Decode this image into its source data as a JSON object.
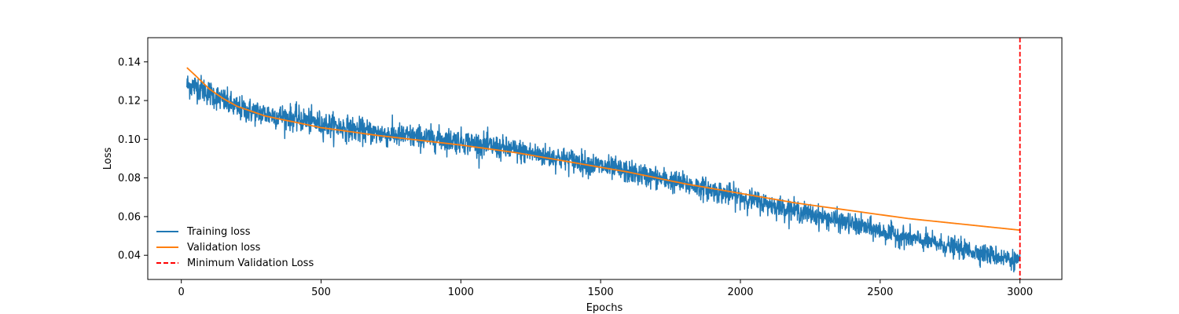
{
  "chart_data": {
    "type": "line",
    "title": "",
    "xlabel": "Epochs",
    "ylabel": "Loss",
    "xlim": [
      -120,
      3150
    ],
    "ylim": [
      0.0275,
      0.1525
    ],
    "x_ticks": [
      0,
      500,
      1000,
      1500,
      2000,
      2500,
      3000
    ],
    "y_ticks": [
      0.04,
      0.06,
      0.08,
      0.1,
      0.12,
      0.14
    ],
    "y_tick_labels": [
      "0.04",
      "0.06",
      "0.08",
      "0.10",
      "0.12",
      "0.14"
    ],
    "grid": false,
    "legend_position": "lower-left",
    "series": [
      {
        "name": "Training loss",
        "color": "#1f77b4",
        "style": "solid",
        "noisy": true,
        "x_range": [
          20,
          3000
        ],
        "trend_x": [
          20,
          60,
          100,
          150,
          200,
          300,
          400,
          500,
          700,
          1000,
          1200,
          1400,
          1600,
          1800,
          2000,
          2200,
          2400,
          2600,
          2800,
          3000
        ],
        "trend_y": [
          0.128,
          0.127,
          0.124,
          0.12,
          0.116,
          0.113,
          0.111,
          0.108,
          0.103,
          0.099,
          0.094,
          0.089,
          0.083,
          0.077,
          0.07,
          0.063,
          0.056,
          0.049,
          0.043,
          0.037
        ]
      },
      {
        "name": "Validation loss",
        "color": "#ff7f0e",
        "style": "solid",
        "x": [
          20,
          50,
          100,
          150,
          200,
          300,
          400,
          500,
          700,
          1000,
          1200,
          1400,
          1600,
          1800,
          2000,
          2200,
          2400,
          2600,
          2800,
          3000
        ],
        "y": [
          0.137,
          0.133,
          0.126,
          0.121,
          0.117,
          0.112,
          0.109,
          0.106,
          0.102,
          0.097,
          0.093,
          0.088,
          0.083,
          0.077,
          0.072,
          0.067,
          0.063,
          0.059,
          0.056,
          0.053
        ]
      },
      {
        "name": "Minimum Validation Loss",
        "color": "#ff0000",
        "style": "dashed",
        "vline_x": 3000
      }
    ]
  }
}
